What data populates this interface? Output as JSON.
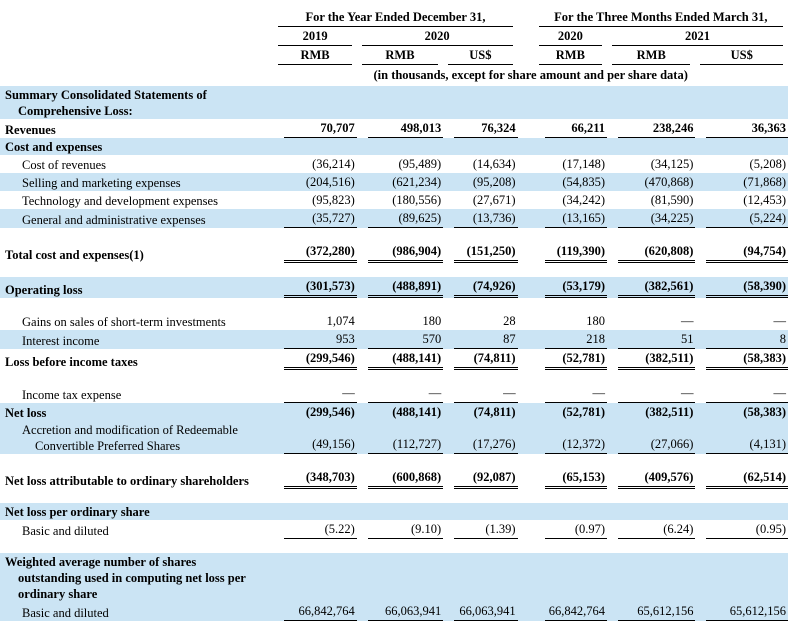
{
  "colors": {
    "stripe": "#cbe4f4",
    "text": "#000000",
    "background": "#ffffff"
  },
  "table": {
    "header": {
      "year_group": "For the Year Ended December 31,",
      "quarter_group": "For the Three Months Ended March 31,",
      "year_cols": [
        {
          "label": "2019"
        },
        {
          "label": "2020"
        },
        {
          "label": "2020"
        },
        {
          "label": "2021"
        }
      ],
      "currencies": [
        "RMB",
        "RMB",
        "US$",
        "RMB",
        "RMB",
        "US$"
      ],
      "units_note": "(in thousands, except for share amount and per share data)"
    },
    "rows": [
      {
        "kind": "item",
        "lines": [
          "Summary Consolidated Statements of",
          "Comprehensive Loss:"
        ],
        "bold": true,
        "shaded": true,
        "indent": 0,
        "values": null,
        "underline": "none"
      },
      {
        "kind": "item",
        "lines": [
          "Revenues"
        ],
        "bold": true,
        "shaded": false,
        "indent": 0,
        "values": [
          "70,707",
          "498,013",
          "76,324",
          "66,211",
          "238,246",
          "36,363"
        ],
        "values_bold": true,
        "underline": "single"
      },
      {
        "kind": "item",
        "lines": [
          "Cost and expenses"
        ],
        "bold": true,
        "shaded": true,
        "indent": 0,
        "values": null,
        "underline": "none"
      },
      {
        "kind": "item",
        "lines": [
          "Cost of revenues"
        ],
        "bold": false,
        "shaded": false,
        "indent": 1,
        "values": [
          "(36,214)",
          "(95,489)",
          "(14,634)",
          "(17,148)",
          "(34,125)",
          "(5,208)"
        ],
        "values_bold": false,
        "underline": "none"
      },
      {
        "kind": "item",
        "lines": [
          "Selling and marketing expenses"
        ],
        "bold": false,
        "shaded": true,
        "indent": 1,
        "values": [
          "(204,516)",
          "(621,234)",
          "(95,208)",
          "(54,835)",
          "(470,868)",
          "(71,868)"
        ],
        "values_bold": false,
        "underline": "none"
      },
      {
        "kind": "item",
        "lines": [
          "Technology and development expenses"
        ],
        "bold": false,
        "shaded": false,
        "indent": 1,
        "values": [
          "(95,823)",
          "(180,556)",
          "(27,671)",
          "(34,242)",
          "(81,590)",
          "(12,453)"
        ],
        "values_bold": false,
        "underline": "none"
      },
      {
        "kind": "item",
        "lines": [
          "General and administrative expenses"
        ],
        "bold": false,
        "shaded": true,
        "indent": 1,
        "values": [
          "(35,727)",
          "(89,625)",
          "(13,736)",
          "(13,165)",
          "(34,225)",
          "(5,224)"
        ],
        "values_bold": false,
        "underline": "single"
      },
      {
        "kind": "spacer"
      },
      {
        "kind": "item",
        "lines": [
          "Total cost and expenses(1)"
        ],
        "bold": true,
        "shaded": false,
        "indent": 0,
        "values": [
          "(372,280)",
          "(986,904)",
          "(151,250)",
          "(119,390)",
          "(620,808)",
          "(94,754)"
        ],
        "values_bold": true,
        "underline": "double"
      },
      {
        "kind": "spacer"
      },
      {
        "kind": "item",
        "lines": [
          "Operating loss"
        ],
        "bold": true,
        "shaded": true,
        "indent": 0,
        "values": [
          "(301,573)",
          "(488,891)",
          "(74,926)",
          "(53,179)",
          "(382,561)",
          "(58,390)"
        ],
        "values_bold": true,
        "underline": "double"
      },
      {
        "kind": "spacer"
      },
      {
        "kind": "item",
        "lines": [
          "Gains on sales of short-term investments"
        ],
        "bold": false,
        "shaded": false,
        "indent": 1,
        "values": [
          "1,074",
          "180",
          "28",
          "180",
          "—",
          "—"
        ],
        "values_bold": false,
        "underline": "none"
      },
      {
        "kind": "item",
        "lines": [
          "Interest income"
        ],
        "bold": false,
        "shaded": true,
        "indent": 1,
        "values": [
          "953",
          "570",
          "87",
          "218",
          "51",
          "8"
        ],
        "values_bold": false,
        "underline": "single"
      },
      {
        "kind": "item",
        "lines": [
          "Loss before income taxes"
        ],
        "bold": true,
        "shaded": false,
        "indent": 0,
        "values": [
          "(299,546)",
          "(488,141)",
          "(74,811)",
          "(52,781)",
          "(382,511)",
          "(58,383)"
        ],
        "values_bold": true,
        "underline": "double"
      },
      {
        "kind": "spacer"
      },
      {
        "kind": "item",
        "lines": [
          "Income tax expense"
        ],
        "bold": false,
        "shaded": false,
        "indent": 1,
        "values": [
          "—",
          "—",
          "—",
          "—",
          "—",
          "—"
        ],
        "values_bold": false,
        "underline": "single"
      },
      {
        "kind": "item",
        "lines": [
          "Net loss"
        ],
        "bold": true,
        "shaded": true,
        "indent": 0,
        "values": [
          "(299,546)",
          "(488,141)",
          "(74,811)",
          "(52,781)",
          "(382,511)",
          "(58,383)"
        ],
        "values_bold": true,
        "underline": "none"
      },
      {
        "kind": "item",
        "lines": [
          "Accretion and modification of Redeemable",
          "Convertible Preferred Shares"
        ],
        "bold": false,
        "shaded": true,
        "indent": 1,
        "values": [
          "(49,156)",
          "(112,727)",
          "(17,276)",
          "(12,372)",
          "(27,066)",
          "(4,131)"
        ],
        "values_bold": false,
        "underline": "single"
      },
      {
        "kind": "spacer"
      },
      {
        "kind": "item",
        "lines": [
          "Net loss attributable to ordinary shareholders"
        ],
        "bold": true,
        "shaded": false,
        "indent": 0,
        "values": [
          "(348,703)",
          "(600,868)",
          "(92,087)",
          "(65,153)",
          "(409,576)",
          "(62,514)"
        ],
        "values_bold": true,
        "underline": "double"
      },
      {
        "kind": "spacer"
      },
      {
        "kind": "item",
        "lines": [
          "Net loss per ordinary share"
        ],
        "bold": true,
        "shaded": true,
        "indent": 0,
        "values": null,
        "underline": "none"
      },
      {
        "kind": "item",
        "lines": [
          "Basic and diluted"
        ],
        "bold": false,
        "shaded": false,
        "indent": 1,
        "values": [
          "(5.22)",
          "(9.10)",
          "(1.39)",
          "(0.97)",
          "(6.24)",
          "(0.95)"
        ],
        "values_bold": false,
        "underline": "single"
      },
      {
        "kind": "spacer"
      },
      {
        "kind": "item",
        "lines": [
          "Weighted average number of shares",
          "outstanding used in computing net loss per",
          "ordinary share"
        ],
        "bold": true,
        "shaded": true,
        "indent": 0,
        "values": null,
        "underline": "none"
      },
      {
        "kind": "item",
        "lines": [
          "Basic and diluted"
        ],
        "bold": false,
        "shaded": true,
        "indent": 1,
        "values": [
          "66,842,764",
          "66,063,941",
          "66,063,941",
          "66,842,764",
          "65,612,156",
          "65,612,156"
        ],
        "values_bold": false,
        "underline": "single"
      }
    ]
  }
}
